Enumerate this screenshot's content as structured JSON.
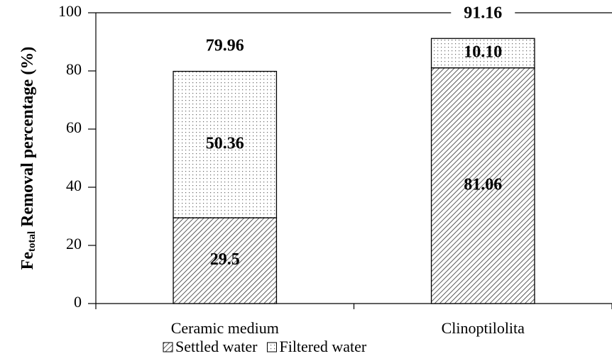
{
  "chart_data": {
    "type": "stacked_bar",
    "ylabel_parts": [
      "Fe",
      "total",
      "Removal percentage (%)"
    ],
    "categories": [
      "Ceramic medium",
      "Clinoptilolita"
    ],
    "series": [
      {
        "name": "Settled water",
        "pattern": "hatch",
        "color": "#000000",
        "values": [
          29.5,
          81.06
        ]
      },
      {
        "name": "Filtered water",
        "pattern": "dots",
        "color": "#000000",
        "values": [
          50.36,
          10.1
        ],
        "value_labels": [
          "50.36",
          "10.10"
        ]
      }
    ],
    "totals": [
      79.96,
      91.16
    ],
    "ylim": [
      0,
      100
    ],
    "yticks": [
      0,
      20,
      40,
      60,
      80,
      100
    ],
    "legend": "bottom"
  }
}
